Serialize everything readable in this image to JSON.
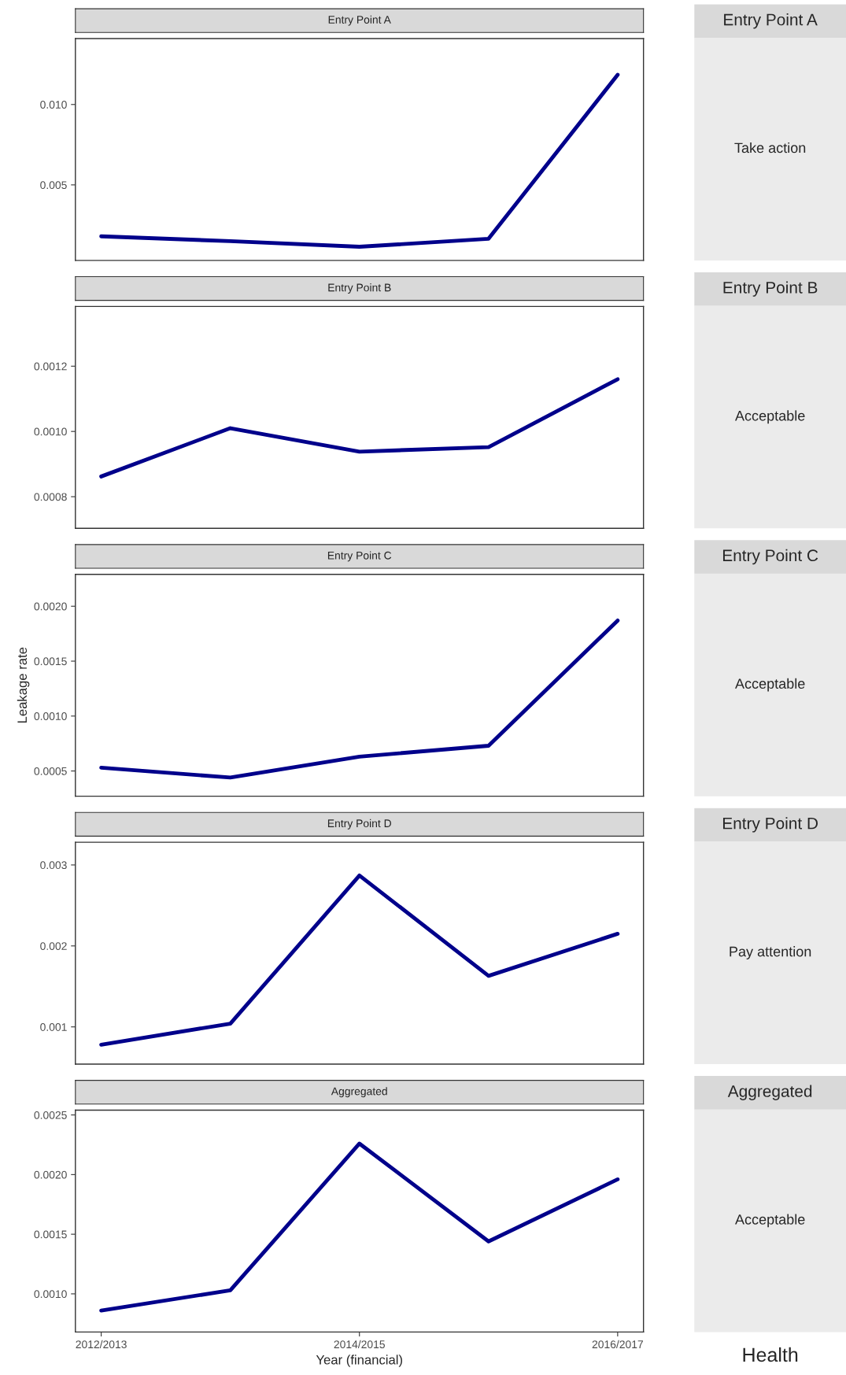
{
  "chart_data": [
    {
      "type": "line",
      "title": "Entry Point A",
      "values": [
        0.0018,
        0.0015,
        0.00115,
        0.00165,
        0.01185
      ],
      "color": "#00008b",
      "ylim": [
        0.0003,
        0.0141
      ],
      "yticks": [
        {
          "value": 0.005,
          "label": "0.005"
        },
        {
          "value": 0.01,
          "label": "0.010"
        }
      ],
      "tick_labels": "y",
      "grid": false
    },
    {
      "type": "other",
      "title": "Entry Point A",
      "annotations": [
        "Take action"
      ]
    },
    {
      "type": "line",
      "title": "Entry Point B",
      "values": [
        0.000862,
        0.00101,
        0.000938,
        0.000952,
        0.00116
      ],
      "color": "#00008b",
      "ylim": [
        0.000703,
        0.001383
      ],
      "yticks": [
        {
          "value": 0.0008,
          "label": "0.0008"
        },
        {
          "value": 0.001,
          "label": "0.0010"
        },
        {
          "value": 0.0012,
          "label": "0.0012"
        }
      ],
      "tick_labels": "y",
      "grid": false
    },
    {
      "type": "other",
      "title": "Entry Point B",
      "annotations": [
        "Acceptable"
      ]
    },
    {
      "type": "line",
      "title": "Entry Point C",
      "ylabel": "Leakage rate",
      "values": [
        0.00053,
        0.00044,
        0.00063,
        0.00073,
        0.00187
      ],
      "color": "#00008b",
      "ylim": [
        0.00027,
        0.00229
      ],
      "yticks": [
        {
          "value": 0.0005,
          "label": "0.0005"
        },
        {
          "value": 0.001,
          "label": "0.0010"
        },
        {
          "value": 0.0015,
          "label": "0.0015"
        },
        {
          "value": 0.002,
          "label": "0.0020"
        }
      ],
      "tick_labels": "y",
      "grid": false
    },
    {
      "type": "other",
      "title": "Entry Point C",
      "annotations": [
        "Acceptable"
      ]
    },
    {
      "type": "line",
      "title": "Entry Point D",
      "values": [
        0.00078,
        0.00104,
        0.00287,
        0.00163,
        0.00215
      ],
      "color": "#00008b",
      "ylim": [
        0.00054,
        0.00328
      ],
      "yticks": [
        {
          "value": 0.001,
          "label": "0.001"
        },
        {
          "value": 0.002,
          "label": "0.002"
        },
        {
          "value": 0.003,
          "label": "0.003"
        }
      ],
      "tick_labels": "y",
      "grid": false
    },
    {
      "type": "other",
      "title": "Entry Point D",
      "annotations": [
        "Pay attention"
      ]
    },
    {
      "type": "line",
      "title": "Aggregated",
      "xlabel": "Year (financial)",
      "categories": [
        "2012/2013",
        null,
        "2014/2015",
        null,
        "2016/2017"
      ],
      "values": [
        0.00086,
        0.00103,
        0.00226,
        0.00144,
        0.00196
      ],
      "color": "#00008b",
      "ylim": [
        0.00068,
        0.00254
      ],
      "yticks": [
        {
          "value": 0.001,
          "label": "0.0010"
        },
        {
          "value": 0.0015,
          "label": "0.0015"
        },
        {
          "value": 0.002,
          "label": "0.0020"
        },
        {
          "value": 0.0025,
          "label": "0.0025"
        }
      ],
      "grid": false
    },
    {
      "type": "other",
      "title": "Aggregated",
      "xlabel": "Health",
      "annotations": [
        "Acceptable"
      ]
    }
  ]
}
